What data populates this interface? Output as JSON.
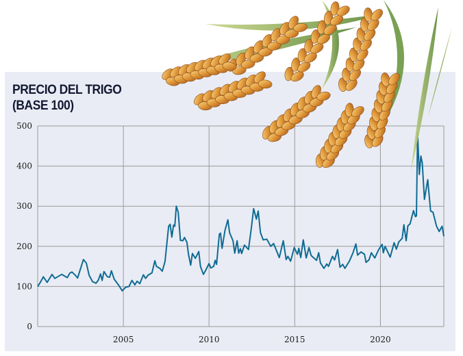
{
  "chart_data": {
    "type": "line",
    "title": "PRECIO DEL TRIGO",
    "subtitle": "(BASE 100)",
    "xlabel": "",
    "ylabel": "",
    "xlim": [
      2000,
      2023.7
    ],
    "ylim": [
      0,
      500
    ],
    "grid": true,
    "x_ticks": [
      2005,
      2010,
      2015,
      2020
    ],
    "x_tick_labels": [
      "2005",
      "2010",
      "2015",
      "2020"
    ],
    "y_ticks": [
      0,
      100,
      200,
      300,
      400,
      500
    ],
    "y_tick_labels": [
      "0",
      "100",
      "200",
      "300",
      "400",
      "500"
    ],
    "series": [
      {
        "name": "Precio del trigo",
        "color": "#0f6a93",
        "points": [
          [
            2000.0,
            100
          ],
          [
            2000.15,
            110
          ],
          [
            2000.33,
            124
          ],
          [
            2000.55,
            110
          ],
          [
            2000.84,
            130
          ],
          [
            2001.0,
            120
          ],
          [
            2001.4,
            130
          ],
          [
            2001.73,
            122
          ],
          [
            2001.87,
            133
          ],
          [
            2002.0,
            136
          ],
          [
            2002.2,
            128
          ],
          [
            2002.33,
            121
          ],
          [
            2002.67,
            167
          ],
          [
            2002.84,
            158
          ],
          [
            2003.0,
            128
          ],
          [
            2003.2,
            112
          ],
          [
            2003.4,
            108
          ],
          [
            2003.53,
            115
          ],
          [
            2003.67,
            131
          ],
          [
            2003.76,
            115
          ],
          [
            2003.87,
            137
          ],
          [
            2004.07,
            124
          ],
          [
            2004.2,
            123
          ],
          [
            2004.3,
            139
          ],
          [
            2004.47,
            118
          ],
          [
            2004.73,
            103
          ],
          [
            2004.93,
            89
          ],
          [
            2005.13,
            98
          ],
          [
            2005.33,
            100
          ],
          [
            2005.5,
            115
          ],
          [
            2005.67,
            104
          ],
          [
            2005.8,
            113
          ],
          [
            2005.96,
            107
          ],
          [
            2006.17,
            129
          ],
          [
            2006.3,
            120
          ],
          [
            2006.44,
            128
          ],
          [
            2006.67,
            134
          ],
          [
            2006.84,
            164
          ],
          [
            2006.93,
            150
          ],
          [
            2007.13,
            145
          ],
          [
            2007.27,
            138
          ],
          [
            2007.43,
            162
          ],
          [
            2007.64,
            250
          ],
          [
            2007.73,
            255
          ],
          [
            2007.83,
            223
          ],
          [
            2007.93,
            253
          ],
          [
            2008.0,
            250
          ],
          [
            2008.09,
            300
          ],
          [
            2008.2,
            285
          ],
          [
            2008.33,
            215
          ],
          [
            2008.47,
            214
          ],
          [
            2008.57,
            222
          ],
          [
            2008.71,
            210
          ],
          [
            2008.8,
            180
          ],
          [
            2008.93,
            153
          ],
          [
            2009.03,
            182
          ],
          [
            2009.2,
            170
          ],
          [
            2009.4,
            187
          ],
          [
            2009.5,
            150
          ],
          [
            2009.67,
            130
          ],
          [
            2009.8,
            140
          ],
          [
            2010.0,
            157
          ],
          [
            2010.1,
            146
          ],
          [
            2010.27,
            150
          ],
          [
            2010.36,
            165
          ],
          [
            2010.44,
            155
          ],
          [
            2010.6,
            230
          ],
          [
            2010.67,
            233
          ],
          [
            2010.76,
            195
          ],
          [
            2010.93,
            240
          ],
          [
            2011.1,
            266
          ],
          [
            2011.2,
            234
          ],
          [
            2011.4,
            214
          ],
          [
            2011.5,
            183
          ],
          [
            2011.64,
            214
          ],
          [
            2011.73,
            183
          ],
          [
            2011.83,
            194
          ],
          [
            2011.9,
            182
          ],
          [
            2012.07,
            203
          ],
          [
            2012.3,
            192
          ],
          [
            2012.47,
            246
          ],
          [
            2012.6,
            294
          ],
          [
            2012.76,
            268
          ],
          [
            2012.87,
            288
          ],
          [
            2013.0,
            234
          ],
          [
            2013.16,
            216
          ],
          [
            2013.37,
            218
          ],
          [
            2013.6,
            200
          ],
          [
            2013.77,
            207
          ],
          [
            2014.1,
            172
          ],
          [
            2014.33,
            214
          ],
          [
            2014.5,
            167
          ],
          [
            2014.6,
            175
          ],
          [
            2014.76,
            163
          ],
          [
            2014.97,
            197
          ],
          [
            2015.16,
            180
          ],
          [
            2015.24,
            195
          ],
          [
            2015.35,
            172
          ],
          [
            2015.5,
            216
          ],
          [
            2015.67,
            171
          ],
          [
            2015.83,
            197
          ],
          [
            2015.96,
            177
          ],
          [
            2016.27,
            165
          ],
          [
            2016.4,
            184
          ],
          [
            2016.5,
            159
          ],
          [
            2016.7,
            145
          ],
          [
            2016.87,
            156
          ],
          [
            2016.97,
            150
          ],
          [
            2017.2,
            175
          ],
          [
            2017.33,
            166
          ],
          [
            2017.5,
            192
          ],
          [
            2017.64,
            148
          ],
          [
            2017.8,
            155
          ],
          [
            2017.93,
            145
          ],
          [
            2018.2,
            164
          ],
          [
            2018.4,
            184
          ],
          [
            2018.57,
            206
          ],
          [
            2018.67,
            178
          ],
          [
            2018.87,
            186
          ],
          [
            2019.07,
            180
          ],
          [
            2019.16,
            160
          ],
          [
            2019.33,
            166
          ],
          [
            2019.47,
            184
          ],
          [
            2019.67,
            171
          ],
          [
            2019.9,
            192
          ],
          [
            2020.1,
            205
          ],
          [
            2020.17,
            184
          ],
          [
            2020.27,
            200
          ],
          [
            2020.57,
            173
          ],
          [
            2020.8,
            209
          ],
          [
            2020.93,
            193
          ],
          [
            2021.07,
            211
          ],
          [
            2021.27,
            220
          ],
          [
            2021.37,
            254
          ],
          [
            2021.5,
            214
          ],
          [
            2021.6,
            251
          ],
          [
            2021.73,
            256
          ],
          [
            2021.93,
            289
          ],
          [
            2022.04,
            274
          ],
          [
            2022.1,
            276
          ],
          [
            2022.17,
            481
          ],
          [
            2022.27,
            379
          ],
          [
            2022.36,
            425
          ],
          [
            2022.44,
            408
          ],
          [
            2022.57,
            317
          ],
          [
            2022.76,
            366
          ],
          [
            2022.93,
            288
          ],
          [
            2023.07,
            285
          ],
          [
            2023.27,
            251
          ],
          [
            2023.43,
            237
          ],
          [
            2023.6,
            250
          ],
          [
            2023.7,
            225
          ]
        ]
      }
    ]
  },
  "colors": {
    "background": "#e9ecf4",
    "grid": "#9a9a9a",
    "line": "#0f6a93",
    "title": "#141833"
  }
}
